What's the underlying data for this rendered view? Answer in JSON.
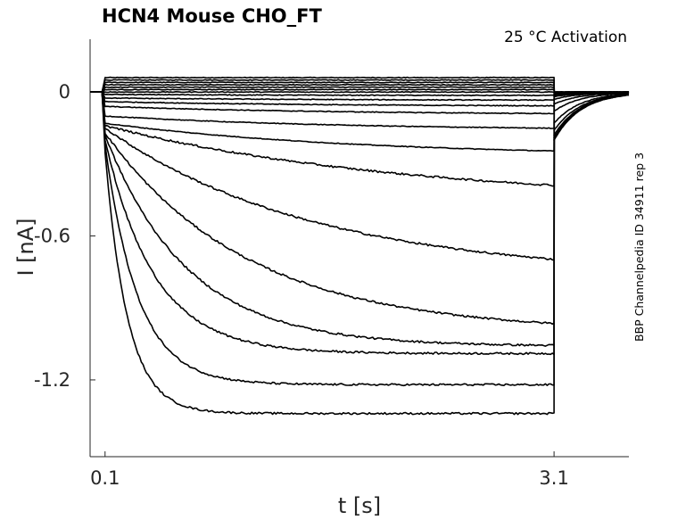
{
  "chart_data": {
    "type": "line",
    "title": "HCN4  Mouse  CHO_FT",
    "annotation": "25 °C  Activation",
    "side_label": "BBP Channelpedia ID 34911 rep 3",
    "xlabel": "t [s]",
    "ylabel": "I [nA]",
    "xlim": [
      0.0,
      3.6
    ],
    "ylim": [
      -1.52,
      0.22
    ],
    "xticks": [
      0.1,
      3.1
    ],
    "xtick_labels": [
      "0.1",
      "3.1"
    ],
    "yticks": [
      0,
      -0.6,
      -1.2
    ],
    "ytick_labels": [
      "0",
      "-0.6",
      "-1.2"
    ],
    "grid": false,
    "pulse_start": 0.1,
    "pulse_end": 3.1,
    "trace_end": 3.6,
    "series": [
      {
        "steady": 0.06,
        "amp": 0.0,
        "tau": 1.0,
        "tail": 0.0
      },
      {
        "steady": 0.05,
        "amp": 0.0,
        "tau": 1.0,
        "tail": 0.0
      },
      {
        "steady": 0.04,
        "amp": 0.0,
        "tau": 1.0,
        "tail": 0.0
      },
      {
        "steady": 0.03,
        "amp": 0.0,
        "tau": 1.0,
        "tail": 0.0
      },
      {
        "steady": 0.02,
        "amp": 0.0,
        "tau": 1.0,
        "tail": 0.0
      },
      {
        "steady": 0.01,
        "amp": 0.0,
        "tau": 1.0,
        "tail": 0.0
      },
      {
        "steady": 0.0,
        "amp": 0.0,
        "tau": 1.0,
        "tail": 0.0
      },
      {
        "steady": -0.01,
        "amp": 0.005,
        "tau": 1.5,
        "tail": -0.005
      },
      {
        "steady": -0.025,
        "amp": 0.01,
        "tau": 1.5,
        "tail": -0.01
      },
      {
        "steady": -0.04,
        "amp": 0.02,
        "tau": 1.5,
        "tail": -0.015
      },
      {
        "steady": -0.06,
        "amp": 0.035,
        "tau": 1.6,
        "tail": -0.02
      },
      {
        "steady": -0.1,
        "amp": 0.06,
        "tau": 1.6,
        "tail": -0.03
      },
      {
        "steady": -0.13,
        "amp": 0.14,
        "tau": 1.7,
        "tail": -0.05
      },
      {
        "steady": -0.14,
        "amp": 0.32,
        "tau": 2.0,
        "tail": -0.08
      },
      {
        "steady": -0.15,
        "amp": 0.62,
        "tau": 1.4,
        "tail": -0.13
      },
      {
        "steady": -0.17,
        "amp": 0.83,
        "tau": 0.95,
        "tail": -0.16
      },
      {
        "steady": -0.18,
        "amp": 0.88,
        "tau": 0.55,
        "tail": -0.18
      },
      {
        "steady": -0.2,
        "amp": 0.89,
        "tau": 0.33,
        "tail": -0.19
      },
      {
        "steady": -0.22,
        "amp": 1.0,
        "tau": 0.22,
        "tail": -0.2
      },
      {
        "steady": -0.25,
        "amp": 1.09,
        "tau": 0.15,
        "tail": -0.2
      }
    ]
  }
}
